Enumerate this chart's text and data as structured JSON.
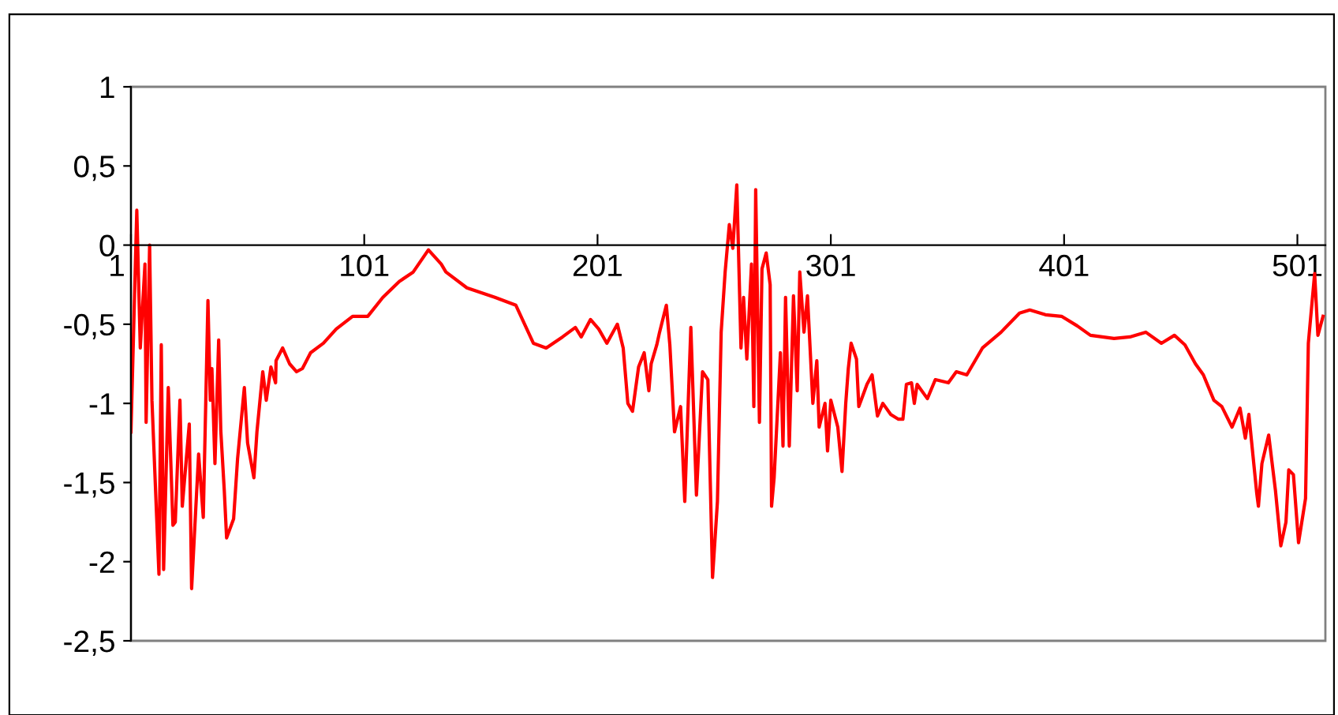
{
  "chart_data": {
    "type": "line",
    "xlim": [
      1,
      513
    ],
    "xticks": [
      1,
      101,
      201,
      301,
      401,
      501
    ],
    "ylim": [
      -2.5,
      1
    ],
    "yticks": [
      1,
      {
        "value": 0.5,
        "label": "0,5"
      },
      0,
      {
        "value": -0.5,
        "label": "-0,5"
      },
      -1,
      {
        "value": -1.5,
        "label": "-1,5"
      },
      -2,
      {
        "value": -2.5,
        "label": "-2,5"
      }
    ],
    "grid": false,
    "marker": "none",
    "line_style": "solid",
    "series": [
      {
        "color": "#ff0000",
        "x": [
          1,
          3.5,
          5,
          7,
          7.5,
          9,
          10,
          13,
          14,
          15,
          17,
          19,
          20,
          22,
          23,
          26,
          27,
          30,
          32,
          34,
          35,
          35.7,
          37,
          38.6,
          39.5,
          41,
          42,
          45,
          46.7,
          49.6,
          51,
          53.7,
          55,
          57.5,
          59,
          61,
          63,
          63.2,
          66,
          69,
          72,
          74.5,
          78,
          83.5,
          89,
          96,
          102.5,
          109,
          116,
          122,
          128.5,
          134,
          136,
          145,
          157,
          166,
          173.5,
          179,
          186,
          191.5,
          194,
          198,
          201.5,
          205,
          209.5,
          212,
          214,
          216,
          218.6,
          221,
          223,
          224,
          226.4,
          227.6,
          230.5,
          232,
          234,
          236.6,
          238.4,
          241,
          243.4,
          246,
          248.3,
          250.3,
          252.4,
          254,
          255.7,
          257.5,
          259,
          260.7,
          262.5,
          263.6,
          265,
          267,
          268,
          268.8,
          270.4,
          271.5,
          273.3,
          275,
          275.6,
          276.7,
          279.4,
          280.5,
          281.6,
          283.2,
          285,
          286.6,
          287.7,
          289.5,
          291,
          293.3,
          295,
          296,
          298.5,
          299.6,
          301,
          304,
          305.8,
          307.4,
          308.5,
          309.7,
          312,
          313,
          316.5,
          318.7,
          321,
          323.3,
          326.7,
          330,
          331.9,
          333.4,
          335.6,
          336.8,
          338,
          342.4,
          345.8,
          351.4,
          354.8,
          359.3,
          366,
          374,
          381.9,
          386.3,
          393,
          399.9,
          406.6,
          412.3,
          422.4,
          429.2,
          436,
          442.7,
          448.3,
          452.8,
          457.3,
          460.7,
          465.2,
          468.6,
          473,
          476.4,
          478.7,
          480.2,
          483.6,
          484.3,
          485.8,
          488.7,
          491.6,
          493.9,
          496.1,
          497.3,
          499.3,
          501.5,
          504.5,
          505.7,
          508.4,
          509.8,
          512
        ],
        "values": [
          -1.18,
          0.22,
          -0.65,
          -0.12,
          -1.12,
          0.0,
          -0.98,
          -2.08,
          -0.63,
          -2.05,
          -0.9,
          -1.77,
          -1.75,
          -0.98,
          -1.65,
          -1.13,
          -2.17,
          -1.32,
          -1.72,
          -0.35,
          -0.98,
          -0.78,
          -1.38,
          -0.6,
          -1.17,
          -1.55,
          -1.85,
          -1.73,
          -1.35,
          -0.9,
          -1.25,
          -1.47,
          -1.18,
          -0.8,
          -0.98,
          -0.77,
          -0.87,
          -0.73,
          -0.65,
          -0.75,
          -0.8,
          -0.78,
          -0.68,
          -0.62,
          -0.53,
          -0.45,
          -0.45,
          -0.33,
          -0.23,
          -0.17,
          -0.03,
          -0.12,
          -0.17,
          -0.27,
          -0.33,
          -0.38,
          -0.62,
          -0.65,
          -0.58,
          -0.52,
          -0.58,
          -0.47,
          -0.53,
          -0.62,
          -0.5,
          -0.65,
          -1.0,
          -1.05,
          -0.77,
          -0.68,
          -0.92,
          -0.75,
          -0.63,
          -0.55,
          -0.38,
          -0.63,
          -1.18,
          -1.02,
          -1.62,
          -0.52,
          -1.58,
          -0.8,
          -0.85,
          -2.1,
          -1.62,
          -0.55,
          -0.17,
          0.13,
          -0.02,
          0.38,
          -0.65,
          -0.33,
          -0.72,
          -0.12,
          -1.02,
          0.35,
          -1.12,
          -0.15,
          -0.05,
          -0.25,
          -1.65,
          -1.47,
          -0.68,
          -1.27,
          -0.33,
          -1.27,
          -0.32,
          -0.92,
          -0.17,
          -0.55,
          -0.32,
          -1.0,
          -0.73,
          -1.15,
          -1.0,
          -1.3,
          -0.98,
          -1.15,
          -1.43,
          -1.0,
          -0.78,
          -0.62,
          -0.72,
          -1.02,
          -0.88,
          -0.82,
          -1.08,
          -1.0,
          -1.07,
          -1.1,
          -1.1,
          -0.88,
          -0.87,
          -1.0,
          -0.88,
          -0.97,
          -0.85,
          -0.87,
          -0.8,
          -0.82,
          -0.65,
          -0.55,
          -0.43,
          -0.41,
          -0.44,
          -0.45,
          -0.51,
          -0.57,
          -0.59,
          -0.58,
          -0.55,
          -0.62,
          -0.57,
          -0.63,
          -0.75,
          -0.82,
          -0.98,
          -1.02,
          -1.15,
          -1.03,
          -1.22,
          -1.07,
          -1.57,
          -1.65,
          -1.38,
          -1.2,
          -1.55,
          -1.9,
          -1.75,
          -1.42,
          -1.45,
          -1.88,
          -1.6,
          -0.62,
          -0.18,
          -0.57,
          -0.45
        ]
      }
    ]
  }
}
